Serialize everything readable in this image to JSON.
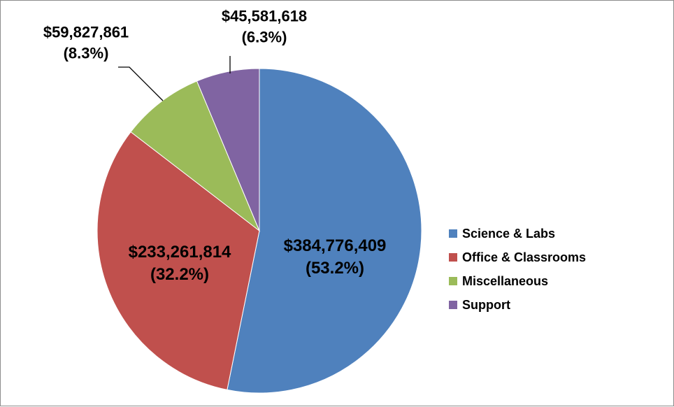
{
  "chart_data": {
    "type": "pie",
    "title": "",
    "series": [
      {
        "name": "",
        "values": [
          384776409,
          233261814,
          59827861,
          45581618
        ],
        "labels": [
          "Science & Labs",
          "Office & Classrooms",
          "Miscellaneous",
          "Support"
        ],
        "data_labels": [
          {
            "value": "$384,776,409",
            "percent": "(53.2%)"
          },
          {
            "value": "$233,261,814",
            "percent": "(32.2%)"
          },
          {
            "value": "$59,827,861",
            "percent": "(8.3%)"
          },
          {
            "value": "$45,581,618",
            "percent": "(6.3%)"
          }
        ]
      }
    ],
    "percentages": [
      53.2,
      32.2,
      8.3,
      6.3
    ],
    "colors": [
      "#4f81bd",
      "#c0504d",
      "#9bbb59",
      "#8064a2"
    ],
    "legend": {
      "placement": "right",
      "entries": [
        "Science & Labs",
        "Office & Classrooms",
        "Miscellaneous",
        "Support"
      ]
    },
    "start_angle_deg": 0,
    "direction": "clockwise"
  }
}
